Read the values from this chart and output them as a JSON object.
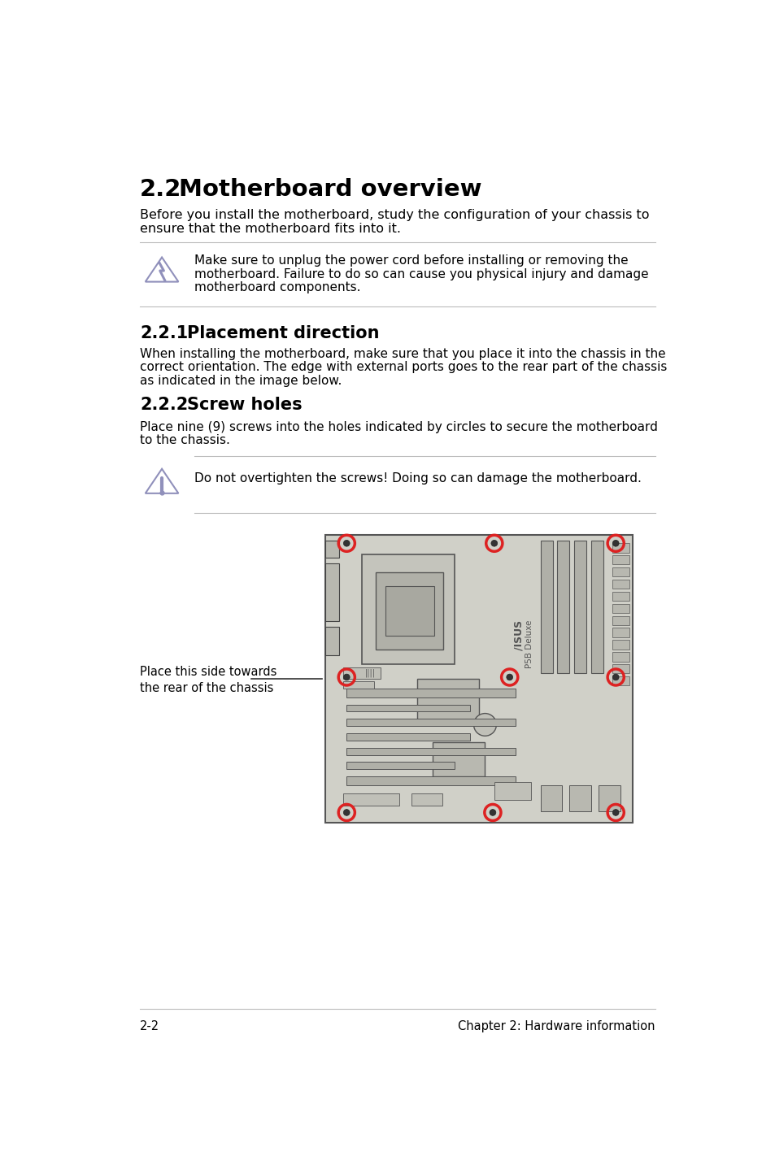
{
  "title_num": "2.2",
  "title_text": "Motherboard overview",
  "intro_lines": [
    "Before you install the motherboard, study the configuration of your chassis to",
    "ensure that the motherboard fits into it."
  ],
  "warn1_lines": [
    "Make sure to unplug the power cord before installing or removing the",
    "motherboard. Failure to do so can cause you physical injury and damage",
    "motherboard components."
  ],
  "sec1_num": "2.2.1",
  "sec1_title": "Placement direction",
  "placement_lines": [
    "When installing the motherboard, make sure that you place it into the chassis in the",
    "correct orientation. The edge with external ports goes to the rear part of the chassis",
    "as indicated in the image below."
  ],
  "sec2_num": "2.2.2",
  "sec2_title": "Screw holes",
  "screw_lines": [
    "Place nine (9) screws into the holes indicated by circles to secure the motherboard",
    "to the chassis."
  ],
  "warn2_text": "Do not overtighten the screws! Doing so can damage the motherboard.",
  "annotation_line1": "Place this side towards",
  "annotation_line2": "the rear of the chassis",
  "footer_left": "2-2",
  "footer_right": "Chapter 2: Hardware information",
  "bg": "#ffffff",
  "fg": "#000000",
  "line_color": "#bbbbbb",
  "board_bg": "#d0d0c8",
  "board_edge": "#555555",
  "icon_color": "#9090bb",
  "screw_red": "#dd2222"
}
